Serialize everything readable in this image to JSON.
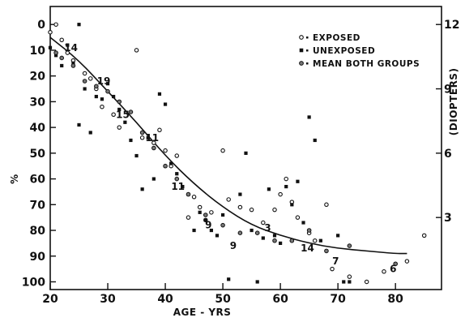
{
  "chart_data": {
    "type": "scatter",
    "title": "",
    "xlabel": "AGE - YRS",
    "ylabel": "%",
    "ylabel_right": "(DIOPTERS)",
    "xlim": [
      20,
      88
    ],
    "ylim": [
      -7,
      103
    ],
    "y_inverted": true,
    "x_ticks": [
      20,
      30,
      40,
      50,
      60,
      70,
      80
    ],
    "y_ticks": [
      0,
      10,
      20,
      30,
      40,
      50,
      60,
      70,
      80,
      90,
      100
    ],
    "right_ticks": [
      {
        "label": "12",
        "y": 0
      },
      {
        "label": "9",
        "y": 25
      },
      {
        "label": "6",
        "y": 50
      },
      {
        "label": "3",
        "y": 75
      }
    ],
    "legend_position": "top-right",
    "legend": [
      {
        "marker": "open",
        "label": "EXPOSED"
      },
      {
        "marker": "filled",
        "label": "UNEXPOSED"
      },
      {
        "marker": "mean",
        "label": "MEAN BOTH GROUPS"
      }
    ],
    "series": [
      {
        "name": "EXPOSED",
        "marker": "open",
        "points": [
          [
            20,
            3
          ],
          [
            21,
            0
          ],
          [
            22,
            6
          ],
          [
            23,
            11
          ],
          [
            24,
            14
          ],
          [
            26,
            19
          ],
          [
            27,
            21
          ],
          [
            28,
            25
          ],
          [
            29,
            32
          ],
          [
            31,
            35
          ],
          [
            32,
            40
          ],
          [
            35,
            10
          ],
          [
            36,
            44
          ],
          [
            38,
            46
          ],
          [
            39,
            41
          ],
          [
            40,
            49
          ],
          [
            41,
            55
          ],
          [
            42,
            51
          ],
          [
            44,
            75
          ],
          [
            45,
            67
          ],
          [
            46,
            71
          ],
          [
            47,
            76
          ],
          [
            48,
            73
          ],
          [
            50,
            49
          ],
          [
            51,
            68
          ],
          [
            53,
            71
          ],
          [
            55,
            72
          ],
          [
            57,
            77
          ],
          [
            59,
            72
          ],
          [
            60,
            66
          ],
          [
            61,
            60
          ],
          [
            62,
            69
          ],
          [
            63,
            75
          ],
          [
            65,
            81
          ],
          [
            66,
            84
          ],
          [
            68,
            70
          ],
          [
            69,
            95
          ],
          [
            72,
            98
          ],
          [
            75,
            100
          ],
          [
            78,
            96
          ],
          [
            82,
            92
          ],
          [
            85,
            82
          ],
          [
            93,
            100
          ]
        ]
      },
      {
        "name": "UNEXPOSED",
        "marker": "filled",
        "points": [
          [
            20,
            9
          ],
          [
            21,
            12
          ],
          [
            22,
            16
          ],
          [
            23,
            8
          ],
          [
            24,
            15
          ],
          [
            25,
            0
          ],
          [
            25,
            39
          ],
          [
            26,
            25
          ],
          [
            27,
            42
          ],
          [
            28,
            28
          ],
          [
            29,
            29
          ],
          [
            30,
            23
          ],
          [
            31,
            28
          ],
          [
            32,
            33
          ],
          [
            33,
            38
          ],
          [
            34,
            45
          ],
          [
            35,
            51
          ],
          [
            36,
            64
          ],
          [
            37,
            44
          ],
          [
            38,
            60
          ],
          [
            39,
            27
          ],
          [
            40,
            31
          ],
          [
            41,
            54
          ],
          [
            42,
            58
          ],
          [
            43,
            63
          ],
          [
            44,
            66
          ],
          [
            45,
            80
          ],
          [
            46,
            73
          ],
          [
            47,
            76
          ],
          [
            48,
            80
          ],
          [
            49,
            82
          ],
          [
            50,
            74
          ],
          [
            51,
            99
          ],
          [
            53,
            66
          ],
          [
            54,
            50
          ],
          [
            55,
            80
          ],
          [
            56,
            100
          ],
          [
            57,
            83
          ],
          [
            58,
            64
          ],
          [
            59,
            82
          ],
          [
            60,
            85
          ],
          [
            61,
            63
          ],
          [
            62,
            70
          ],
          [
            63,
            61
          ],
          [
            64,
            77
          ],
          [
            65,
            36
          ],
          [
            66,
            45
          ],
          [
            67,
            84
          ],
          [
            70,
            82
          ],
          [
            71,
            100
          ],
          [
            72,
            100
          ]
        ]
      },
      {
        "name": "MEAN BOTH GROUPS",
        "marker": "mean",
        "points": [
          [
            21,
            11
          ],
          [
            22,
            13
          ],
          [
            24,
            16
          ],
          [
            26,
            22
          ],
          [
            28,
            24
          ],
          [
            30,
            26
          ],
          [
            32,
            30
          ],
          [
            34,
            34
          ],
          [
            36,
            42
          ],
          [
            38,
            48
          ],
          [
            40,
            55
          ],
          [
            42,
            60
          ],
          [
            44,
            66
          ],
          [
            47,
            74
          ],
          [
            50,
            78
          ],
          [
            53,
            81
          ],
          [
            56,
            81
          ],
          [
            59,
            84
          ],
          [
            62,
            84
          ],
          [
            65,
            80
          ],
          [
            68,
            88
          ],
          [
            72,
            86
          ],
          [
            80,
            93
          ]
        ]
      }
    ],
    "curve": {
      "x": [
        20,
        25,
        30,
        35,
        40,
        45,
        50,
        55,
        60,
        65,
        70,
        75,
        80,
        82
      ],
      "y": [
        5,
        14,
        26,
        38,
        51,
        62,
        71,
        78,
        82,
        85,
        87,
        88,
        89,
        89
      ]
    },
    "annotations": [
      {
        "text": "14",
        "x": 23.6,
        "y": 9
      },
      {
        "text": "19",
        "x": 29.3,
        "y": 22
      },
      {
        "text": "15",
        "x": 32.6,
        "y": 35
      },
      {
        "text": "11",
        "x": 37.7,
        "y": 44
      },
      {
        "text": "11",
        "x": 42.2,
        "y": 63
      },
      {
        "text": "9",
        "x": 47.5,
        "y": 78
      },
      {
        "text": "9",
        "x": 51.8,
        "y": 86
      },
      {
        "text": "3",
        "x": 57.8,
        "y": 79
      },
      {
        "text": "14",
        "x": 64.7,
        "y": 87
      },
      {
        "text": "7",
        "x": 69.6,
        "y": 92
      },
      {
        "text": "6",
        "x": 79.6,
        "y": 95
      }
    ]
  }
}
